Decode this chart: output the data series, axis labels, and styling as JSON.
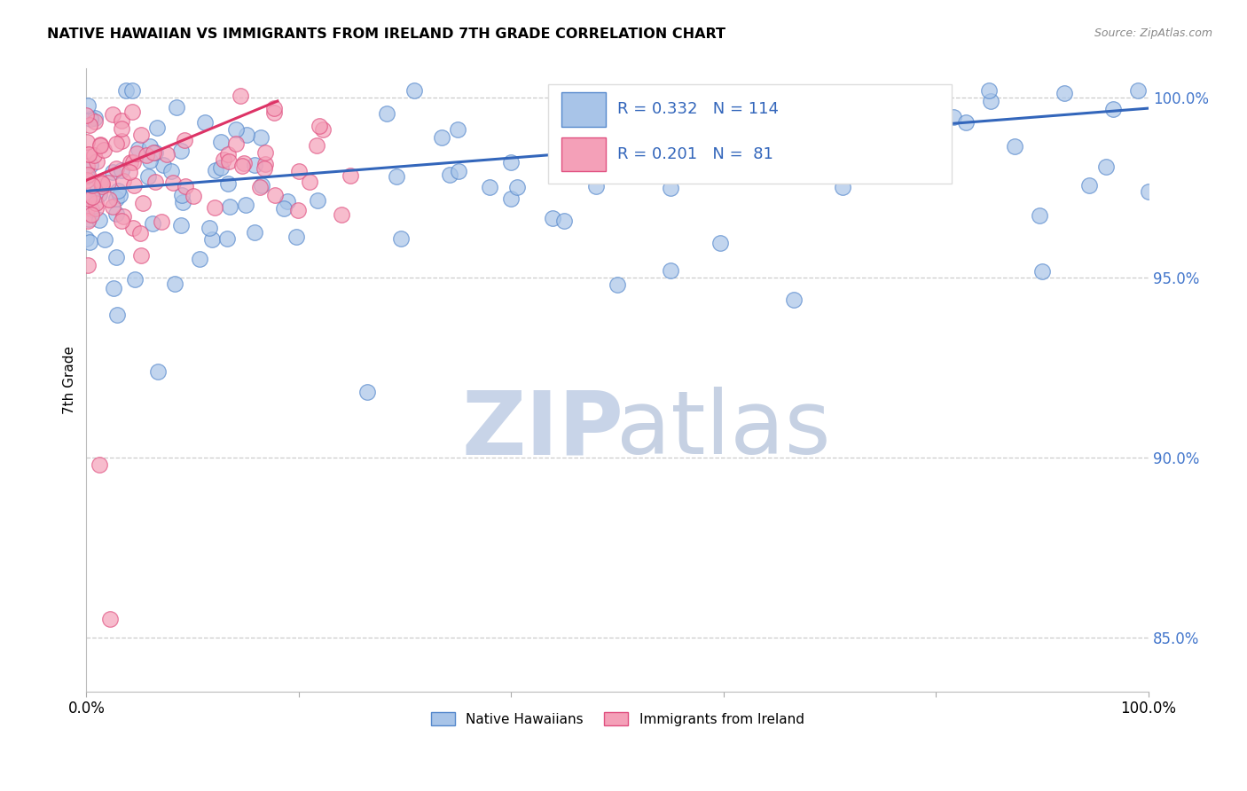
{
  "title": "NATIVE HAWAIIAN VS IMMIGRANTS FROM IRELAND 7TH GRADE CORRELATION CHART",
  "source": "Source: ZipAtlas.com",
  "ylabel": "7th Grade",
  "xlim": [
    0.0,
    1.0
  ],
  "ylim": [
    0.835,
    1.008
  ],
  "yticks": [
    0.85,
    0.9,
    0.95,
    1.0
  ],
  "ytick_labels": [
    "85.0%",
    "90.0%",
    "95.0%",
    "100.0%"
  ],
  "blue_R": 0.332,
  "blue_N": 114,
  "pink_R": 0.201,
  "pink_N": 81,
  "blue_fill": "#A8C4E8",
  "blue_edge": "#5588CC",
  "pink_fill": "#F4A0B8",
  "pink_edge": "#E05080",
  "blue_line_color": "#3366BB",
  "pink_line_color": "#DD3366",
  "legend_text_color": "#3366BB",
  "ytick_color": "#4477CC",
  "grid_color": "#CCCCCC",
  "watermark_zip_color": "#C8D4E8",
  "watermark_atlas_color": "#C0CCE0"
}
